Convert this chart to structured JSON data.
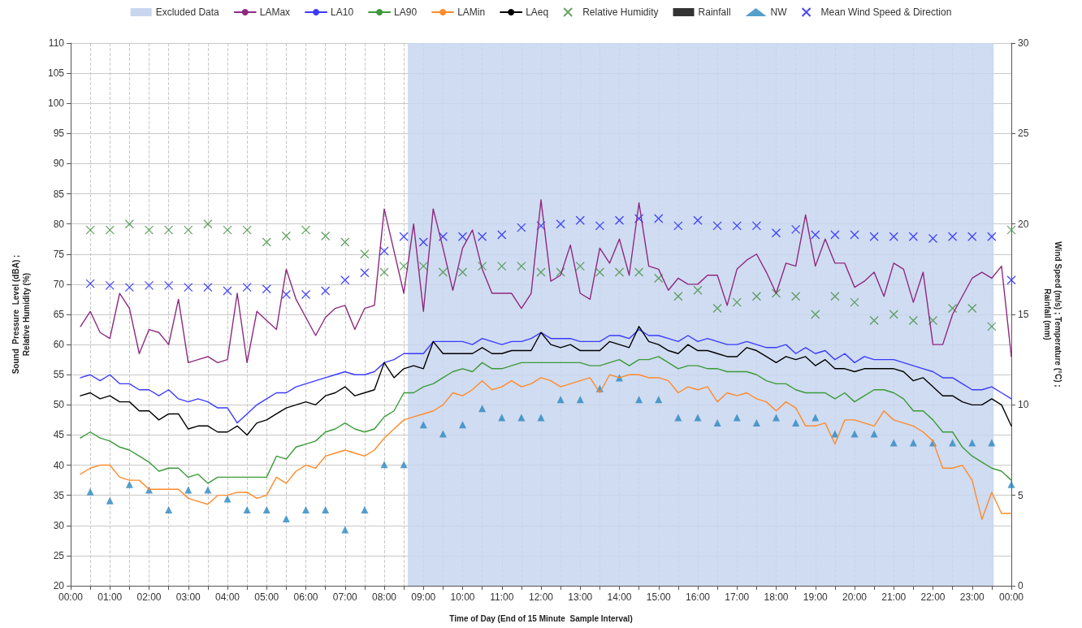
{
  "chart_data": {
    "type": "line",
    "xlabel": "Time of Day (End of 15 Minute  Sample Interval)",
    "ylabel": "Sound  Pressure  Level (dBA) ;\nRelative Humidity (%)",
    "y2label": "Wind Speed (m/s) ; Temperature (°C) ;\nRainfall (mm)",
    "x": [
      0.25,
      0.5,
      0.75,
      1,
      1.25,
      1.5,
      1.75,
      2,
      2.25,
      2.5,
      2.75,
      3,
      3.25,
      3.5,
      3.75,
      4,
      4.25,
      4.5,
      4.75,
      5,
      5.25,
      5.5,
      5.75,
      6,
      6.25,
      6.5,
      6.75,
      7,
      7.25,
      7.5,
      7.75,
      8,
      8.25,
      8.5,
      8.75,
      9,
      9.25,
      9.5,
      9.75,
      10,
      10.25,
      10.5,
      10.75,
      11,
      11.25,
      11.5,
      11.75,
      12,
      12.25,
      12.5,
      12.75,
      13,
      13.25,
      13.5,
      13.75,
      14,
      14.25,
      14.5,
      14.75,
      15,
      15.25,
      15.5,
      15.75,
      16,
      16.25,
      16.5,
      16.75,
      17,
      17.25,
      17.5,
      17.75,
      18,
      18.25,
      18.5,
      18.75,
      19,
      19.25,
      19.5,
      19.75,
      20,
      20.25,
      20.5,
      20.75,
      21,
      21.25,
      21.5,
      21.75,
      22,
      22.25,
      22.5,
      22.75,
      23,
      23.25,
      23.5,
      23.75,
      24
    ],
    "series": [
      {
        "name": "LAMax",
        "color": "#8e2a80",
        "values": [
          63,
          65.5,
          62,
          61,
          68.5,
          66,
          58.5,
          62.5,
          62,
          60,
          67.5,
          57,
          57.5,
          58,
          57,
          57.5,
          68.5,
          57,
          65.5,
          64,
          62.5,
          72.5,
          67.5,
          64.5,
          61.5,
          64.5,
          66,
          66.5,
          62.5,
          66,
          66.5,
          82.5,
          75.5,
          68.5,
          80,
          65.5,
          82.5,
          76,
          69,
          76,
          79,
          72.5,
          68.5,
          68.5,
          68.5,
          66,
          68.5,
          84,
          70.5,
          71.5,
          76.5,
          68.5,
          67.5,
          76,
          73.5,
          77.5,
          71.5,
          83.5,
          73,
          72.5,
          69,
          71,
          70,
          70,
          71.5,
          71.5,
          66.5,
          72.5,
          74,
          75,
          72,
          68.5,
          73.5,
          73,
          81.5,
          73,
          77.5,
          73.5,
          73.5,
          69.5,
          70.5,
          72,
          68,
          73.5,
          72.5,
          67,
          72,
          60,
          60,
          65,
          68,
          71,
          72,
          71,
          73,
          58
        ]
      },
      {
        "name": "LA10",
        "color": "#3a3aff",
        "values": [
          54.5,
          55,
          54,
          55,
          53.5,
          53.5,
          52.5,
          52.5,
          51.5,
          52.5,
          51,
          50.5,
          51,
          50.5,
          49.5,
          49.5,
          47,
          48.5,
          50,
          51,
          52,
          52,
          53,
          53.5,
          54,
          54.5,
          55,
          55.5,
          55,
          55,
          55.5,
          57,
          57.5,
          58.5,
          58.5,
          58.5,
          60.5,
          60.5,
          60.5,
          60.5,
          60,
          61,
          60.5,
          60,
          60.5,
          60.5,
          61,
          62,
          61,
          61,
          61,
          60.5,
          60.5,
          60.5,
          61.5,
          61.5,
          61,
          62.5,
          61.5,
          61.5,
          61,
          60.5,
          61.5,
          60.5,
          61,
          60.5,
          60,
          60,
          60.5,
          60,
          59.5,
          59.5,
          60,
          58.5,
          59.5,
          58.5,
          59,
          57.5,
          58.5,
          57,
          58,
          57.5,
          57.5,
          57.5,
          57,
          56.5,
          56,
          55.5,
          54.5,
          54.5,
          53.5,
          52.5,
          52.5,
          53,
          52,
          51
        ]
      },
      {
        "name": "LA90",
        "color": "#3a9a3a",
        "values": [
          44.5,
          45.5,
          44.5,
          44,
          43,
          42.5,
          41.5,
          40.5,
          39,
          39.5,
          39.5,
          38,
          38.5,
          37,
          38,
          38,
          38,
          38,
          38,
          38,
          41.5,
          41,
          43,
          43.5,
          44,
          45.5,
          46,
          47,
          46,
          45.5,
          46,
          48,
          49,
          52,
          52,
          53,
          53.5,
          54.5,
          55.5,
          56,
          55.5,
          57,
          56,
          56,
          56.5,
          57,
          57,
          57,
          57,
          57,
          57,
          57,
          56.5,
          56.5,
          57,
          57.5,
          56.5,
          57.5,
          57.5,
          58,
          57,
          56,
          56.5,
          56.5,
          56,
          56,
          55.5,
          55.5,
          55.5,
          55,
          54,
          53.5,
          53.5,
          52.5,
          52,
          52,
          52,
          51,
          52,
          50.5,
          51.5,
          52.5,
          52.5,
          52,
          51,
          49,
          49,
          47.5,
          45.5,
          45.5,
          43,
          41.5,
          40.5,
          39.5,
          39,
          37.5
        ]
      },
      {
        "name": "LAMin",
        "color": "#ff8a2a",
        "values": [
          38.5,
          39.5,
          40,
          40,
          38,
          37.5,
          37.5,
          36,
          36,
          36,
          36,
          34.5,
          34,
          33.5,
          35,
          35,
          35.5,
          35.5,
          34.5,
          35,
          38,
          37,
          39,
          40,
          39.5,
          41.5,
          42,
          42.5,
          42,
          41.5,
          42.5,
          44.5,
          46,
          47.5,
          48,
          48.5,
          49,
          50,
          52,
          51.5,
          52.5,
          54,
          52.5,
          53,
          54,
          53,
          53.5,
          54.5,
          54,
          53,
          53.5,
          54,
          54.5,
          52,
          55,
          54.5,
          55,
          55,
          54.5,
          54.5,
          54,
          52,
          53,
          52.5,
          53,
          50.5,
          52,
          51.5,
          52,
          51,
          50.5,
          49,
          50.5,
          49.5,
          46.5,
          46.5,
          47,
          43.5,
          47.5,
          47.5,
          47,
          46.5,
          49,
          47.5,
          47,
          46.5,
          45.5,
          44,
          39.5,
          39.5,
          40,
          37.5,
          31,
          35.5,
          32,
          32
        ]
      },
      {
        "name": "LAeq",
        "color": "#000000",
        "values": [
          51.5,
          52,
          51,
          51.5,
          50.5,
          50.5,
          49,
          49,
          47.5,
          48.5,
          48.5,
          46,
          46.5,
          46.5,
          45.5,
          45.5,
          46.5,
          45,
          47,
          47.5,
          48.5,
          49.5,
          50,
          50.5,
          50,
          51.5,
          52,
          53,
          51.5,
          52,
          52.5,
          57,
          54.5,
          56,
          56.5,
          56,
          60.5,
          58.5,
          58.5,
          58.5,
          58.5,
          59.5,
          58.5,
          58.5,
          59,
          59,
          59,
          62,
          60,
          59.5,
          60,
          59,
          59,
          59,
          60.5,
          60,
          59.5,
          63,
          60.5,
          60,
          59,
          58.5,
          60,
          59,
          59,
          58.5,
          58,
          58,
          59.5,
          59,
          58,
          57,
          58,
          57.5,
          58,
          56.5,
          57.5,
          56,
          56,
          55.5,
          56,
          56,
          56,
          56,
          55.5,
          54,
          54.5,
          53,
          51.5,
          51.5,
          50.5,
          50,
          50,
          51,
          50,
          46.5
        ]
      },
      {
        "name": "Relative Humidity",
        "type": "scatter",
        "marker": "cross",
        "color": "#3f8f3f",
        "x": [
          0.5,
          1,
          1.5,
          2,
          2.5,
          3,
          3.5,
          4,
          4.5,
          5,
          5.5,
          6,
          6.5,
          7,
          7.5,
          8,
          8.5,
          9,
          9.5,
          10,
          10.5,
          11,
          11.5,
          12,
          12.5,
          13,
          13.5,
          14,
          14.5,
          15,
          15.5,
          16,
          16.5,
          17,
          17.5,
          18,
          18.5,
          19,
          19.5,
          20,
          20.5,
          21,
          21.5,
          22,
          22.5,
          23,
          23.5,
          24
        ],
        "values": [
          79,
          79,
          80,
          79,
          79,
          79,
          80,
          79,
          79,
          77,
          78,
          79,
          78,
          77,
          75,
          72,
          73,
          73,
          72,
          72,
          73,
          73,
          73,
          72,
          72,
          73,
          72,
          72,
          72,
          71,
          68,
          69,
          66,
          67,
          68,
          68.5,
          68,
          65,
          68,
          67,
          64,
          65,
          64,
          64,
          66,
          66,
          63,
          79
        ]
      },
      {
        "name": "Rainfall",
        "type": "scatter",
        "marker": "square",
        "axis": "y2",
        "color": "#000000",
        "values": [
          null,
          null,
          null,
          null,
          null,
          null,
          null,
          null,
          null,
          null,
          null,
          null,
          null,
          null,
          null,
          null,
          null,
          null,
          null,
          null,
          null,
          null,
          null,
          null,
          null,
          null,
          null,
          null,
          null,
          null,
          null,
          null,
          null,
          null,
          null,
          null,
          null,
          null,
          null,
          null,
          null,
          null,
          null,
          null,
          null,
          null,
          null,
          null,
          null,
          null,
          null,
          null,
          null,
          null,
          null,
          null,
          null,
          null,
          null,
          null,
          null,
          null,
          null,
          null,
          null,
          null,
          null,
          null,
          null,
          null,
          null,
          null,
          null,
          null,
          null,
          null,
          null,
          null,
          null,
          null,
          null,
          null,
          null,
          null,
          null,
          null,
          null,
          null,
          null,
          null,
          null,
          null,
          null,
          null,
          null,
          null
        ]
      },
      {
        "name": "NW",
        "type": "scatter",
        "marker": "triangle",
        "axis": "y2",
        "color": "#2b87c0",
        "x": [
          0.5,
          1,
          1.5,
          2,
          2.5,
          3,
          3.5,
          4,
          4.5,
          5,
          5.5,
          6,
          6.5,
          7,
          7.5,
          8,
          8.5,
          9,
          9.5,
          10,
          10.5,
          11,
          11.5,
          12,
          12.5,
          13,
          13.5,
          14,
          14.5,
          15,
          15.5,
          16,
          16.5,
          17,
          17.5,
          18,
          18.5,
          19,
          19.5,
          20,
          20.5,
          21,
          21.5,
          22,
          22.5,
          23,
          23.5,
          24
        ],
        "values": [
          5.2,
          4.7,
          5.6,
          5.3,
          4.2,
          5.3,
          5.3,
          4.8,
          4.2,
          4.2,
          3.7,
          4.2,
          4.2,
          3.1,
          4.2,
          6.7,
          6.7,
          8.9,
          8.4,
          8.9,
          9.8,
          9.3,
          9.3,
          9.3,
          10.3,
          10.3,
          10.9,
          11.5,
          10.3,
          10.3,
          9.3,
          9.3,
          9,
          9.3,
          9,
          9.3,
          9,
          9.3,
          8.4,
          8.4,
          8.4,
          7.9,
          7.9,
          7.9,
          7.9,
          7.9,
          7.9,
          5.6
        ]
      },
      {
        "name": "Mean Wind Speed & Direction",
        "type": "scatter",
        "marker": "cross",
        "axis": "y2",
        "color": "#1a1aff",
        "x": [
          0.5,
          1,
          1.5,
          2,
          2.5,
          3,
          3.5,
          4,
          4.5,
          5,
          5.5,
          6,
          6.5,
          7,
          7.5,
          8,
          8.5,
          9,
          9.5,
          10,
          10.5,
          11,
          11.5,
          12,
          12.5,
          13,
          13.5,
          14,
          14.5,
          15,
          15.5,
          16,
          16.5,
          17,
          17.5,
          18,
          18.5,
          19,
          19.5,
          20,
          20.5,
          21,
          21.5,
          22,
          22.5,
          23,
          23.5,
          24
        ],
        "values": [
          16.7,
          16.6,
          16.5,
          16.6,
          16.6,
          16.5,
          16.5,
          16.3,
          16.5,
          16.4,
          16.1,
          16.1,
          16.3,
          16.9,
          17.3,
          18.5,
          19.3,
          19,
          19.3,
          19.3,
          19.3,
          19.4,
          19.8,
          19.9,
          20,
          20.2,
          19.9,
          20.2,
          20.3,
          20.3,
          19.9,
          20.2,
          19.9,
          19.9,
          19.9,
          19.5,
          19.7,
          19.4,
          19.4,
          19.4,
          19.3,
          19.3,
          19.3,
          19.2,
          19.3,
          19.3,
          19.3,
          16.9
        ]
      }
    ],
    "bands": [
      {
        "axis": "x",
        "from": 8.6,
        "to": 23.55,
        "label": "Excluded Data",
        "color": "#c8d6ee"
      }
    ],
    "xlim": [
      0,
      24
    ],
    "xticks": [
      {
        "value": 0,
        "label": "00:00"
      },
      {
        "value": 0.5,
        "label": null
      },
      {
        "value": 1,
        "label": "01:00"
      },
      {
        "value": 1.5,
        "label": null
      },
      {
        "value": 2,
        "label": "02:00"
      },
      {
        "value": 2.5,
        "label": null
      },
      {
        "value": 3,
        "label": "03:00"
      },
      {
        "value": 3.5,
        "label": null
      },
      {
        "value": 4,
        "label": "04:00"
      },
      {
        "value": 4.5,
        "label": null
      },
      {
        "value": 5,
        "label": "05:00"
      },
      {
        "value": 5.5,
        "label": null
      },
      {
        "value": 6,
        "label": "06:00"
      },
      {
        "value": 6.5,
        "label": null
      },
      {
        "value": 7,
        "label": "07:00"
      },
      {
        "value": 7.5,
        "label": null
      },
      {
        "value": 8,
        "label": "08:00"
      },
      {
        "value": 8.5,
        "label": null
      },
      {
        "value": 9,
        "label": "09:00"
      },
      {
        "value": 9.5,
        "label": null
      },
      {
        "value": 10,
        "label": "10:00"
      },
      {
        "value": 10.5,
        "label": null
      },
      {
        "value": 11,
        "label": "11:00"
      },
      {
        "value": 11.5,
        "label": null
      },
      {
        "value": 12,
        "label": "12:00"
      },
      {
        "value": 12.5,
        "label": null
      },
      {
        "value": 13,
        "label": "13:00"
      },
      {
        "value": 13.5,
        "label": null
      },
      {
        "value": 14,
        "label": "14:00"
      },
      {
        "value": 14.5,
        "label": null
      },
      {
        "value": 15,
        "label": "15:00"
      },
      {
        "value": 15.5,
        "label": null
      },
      {
        "value": 16,
        "label": "16:00"
      },
      {
        "value": 16.5,
        "label": null
      },
      {
        "value": 17,
        "label": "17:00"
      },
      {
        "value": 17.5,
        "label": null
      },
      {
        "value": 18,
        "label": "18:00"
      },
      {
        "value": 18.5,
        "label": null
      },
      {
        "value": 19,
        "label": "19:00"
      },
      {
        "value": 19.5,
        "label": null
      },
      {
        "value": 20,
        "label": "20:00"
      },
      {
        "value": 20.5,
        "label": null
      },
      {
        "value": 21,
        "label": "21:00"
      },
      {
        "value": 21.5,
        "label": null
      },
      {
        "value": 22,
        "label": "22:00"
      },
      {
        "value": 22.5,
        "label": null
      },
      {
        "value": 23,
        "label": "23:00"
      },
      {
        "value": 23.5,
        "label": null
      },
      {
        "value": 24,
        "label": "00:00"
      }
    ],
    "ylim": [
      20,
      110
    ],
    "yticks": [
      20,
      25,
      30,
      35,
      40,
      45,
      50,
      55,
      60,
      65,
      70,
      75,
      80,
      85,
      90,
      95,
      100,
      105,
      110
    ],
    "y2lim": [
      0,
      30
    ],
    "y2ticks": [
      0,
      5,
      10,
      15,
      20,
      25,
      30
    ],
    "grid": true,
    "legend": "top"
  }
}
